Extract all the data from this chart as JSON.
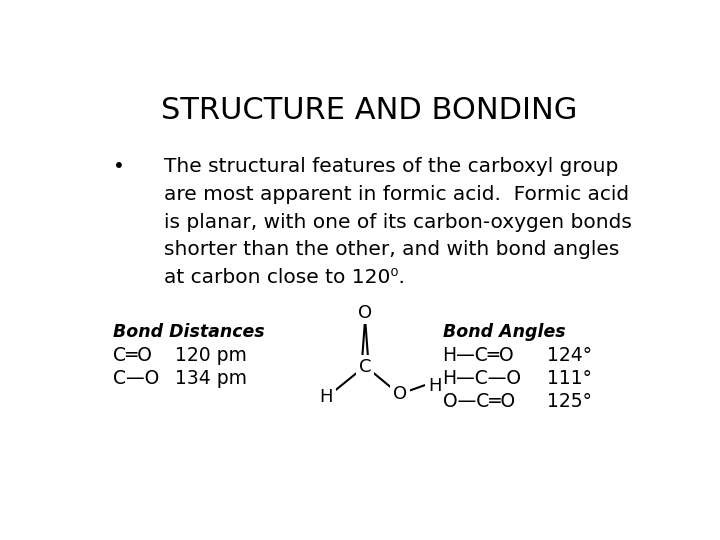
{
  "title": "STRUCTURE AND BONDING",
  "title_fontsize": 22,
  "background_color": "#ffffff",
  "bullet_lines": [
    "The structural features of the carboxyl group",
    "are most apparent in formic acid.  Formic acid",
    "is planar, with one of its carbon-oxygen bonds",
    "shorter than the other, and with bond angles",
    "at carbon close to 120⁰."
  ],
  "bullet_fontsize": 14.5,
  "bond_dist_header": "Bond Distances",
  "bond_ang_header": "Bond Angles",
  "table_fontsize": 12.5,
  "bond_dist_rows": [
    {
      "formula": "C═O",
      "value": "120 pm"
    },
    {
      "formula": "C—O",
      "value": "134 pm"
    }
  ],
  "bond_ang_rows": [
    {
      "formula": "H—C═O",
      "value": "124°"
    },
    {
      "formula": "H—C—O",
      "value": "111°"
    },
    {
      "formula": "O—C═O",
      "value": "125°"
    }
  ],
  "text_color": "#000000"
}
